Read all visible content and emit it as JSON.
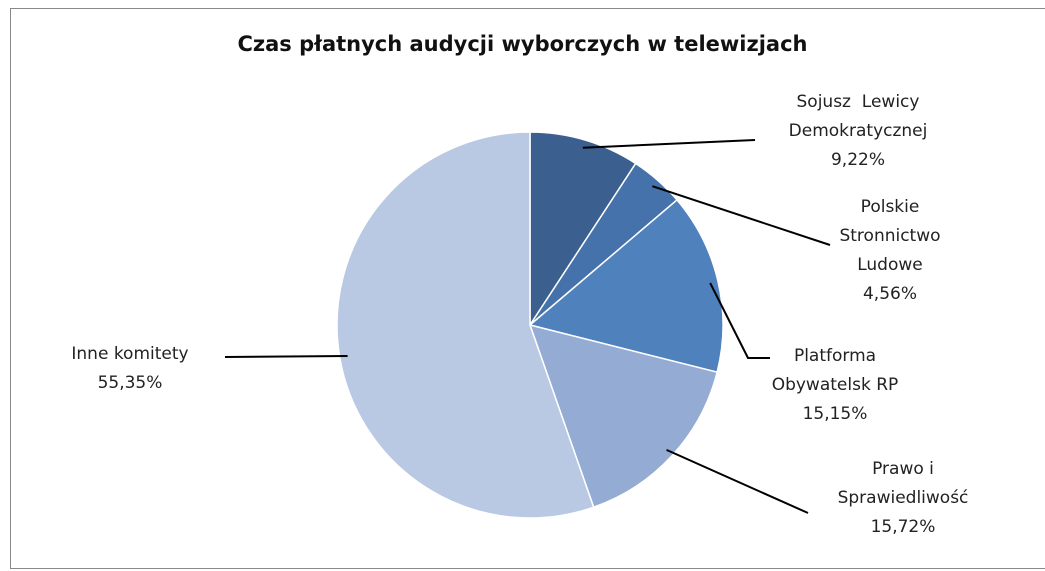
{
  "chart_data": {
    "type": "pie",
    "title": "Czas płatnych audycji wyborczych w telewizjach",
    "categories": [
      "Sojusz  Lewicy Demokratycznej",
      "Polskie Stronnictwo Ludowe",
      "Platforma Obywatelsk RP",
      "Prawo i Sprawiedliwość",
      "Inne komitety"
    ],
    "values": [
      9.22,
      4.56,
      15.15,
      15.72,
      55.35
    ],
    "value_labels": [
      "9,22%",
      "4,56%",
      "15,15%",
      "15,72%",
      "55,35%"
    ],
    "colors": [
      "#3b5f8f",
      "#4672ab",
      "#4f81bd",
      "#94abd3",
      "#b9c8e3"
    ]
  }
}
